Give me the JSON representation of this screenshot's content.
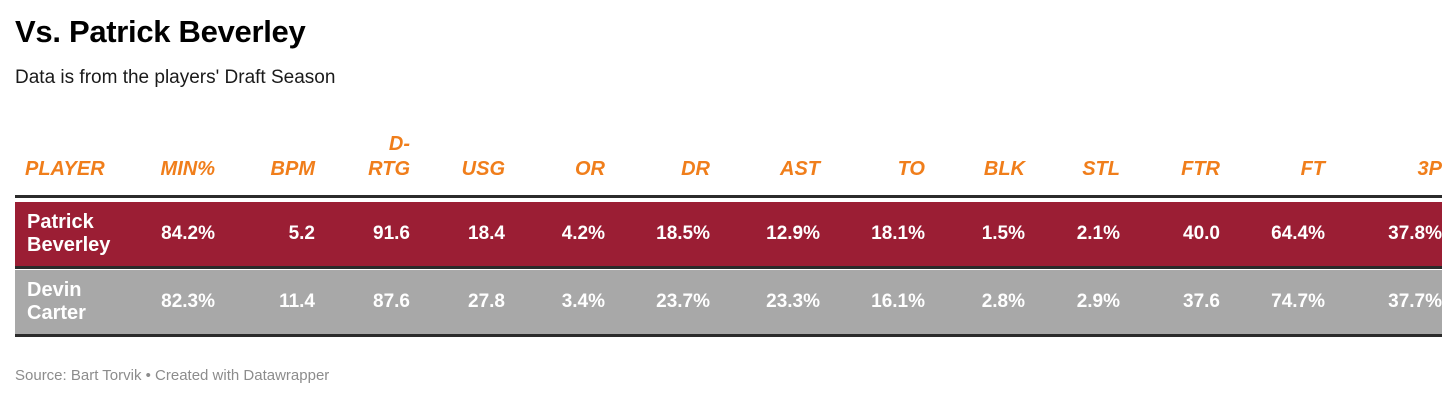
{
  "header": {
    "title": "Vs. Patrick Beverley",
    "subtitle": "Data is from the players' Draft Season"
  },
  "footer": {
    "source": "Source: Bart Torvik • Created with Datawrapper"
  },
  "colors": {
    "header_text": "#f07e1b",
    "row_patrick": "#9b1e34",
    "row_devin": "#a8a8a8",
    "rule": "#2b2b2b"
  },
  "chart_data": {
    "type": "table",
    "columns": [
      "PLAYER",
      "MIN%",
      "BPM",
      "D-RTG",
      "USG",
      "OR",
      "DR",
      "AST",
      "TO",
      "BLK",
      "STL",
      "FTR",
      "FT",
      "3P"
    ],
    "column_header_lines": [
      [
        "PLAYER"
      ],
      [
        "MIN%"
      ],
      [
        "BPM"
      ],
      [
        "D-",
        "RTG"
      ],
      [
        "USG"
      ],
      [
        "OR"
      ],
      [
        "DR"
      ],
      [
        "AST"
      ],
      [
        "TO"
      ],
      [
        "BLK"
      ],
      [
        "STL"
      ],
      [
        "FTR"
      ],
      [
        "FT"
      ],
      [
        "3P"
      ]
    ],
    "rows": [
      {
        "player": "Patrick Beverley",
        "player_lines": [
          "Patrick",
          "Beverley"
        ],
        "row_color": "#9b1e34",
        "values": [
          "84.2%",
          "5.2",
          "91.6",
          "18.4",
          "4.2%",
          "18.5%",
          "12.9%",
          "18.1%",
          "1.5%",
          "2.1%",
          "40.0",
          "64.4%",
          "37.8%"
        ]
      },
      {
        "player": "Devin Carter",
        "player_lines": [
          "Devin",
          "Carter"
        ],
        "row_color": "#a8a8a8",
        "values": [
          "82.3%",
          "11.4",
          "87.6",
          "27.8",
          "3.4%",
          "23.7%",
          "23.3%",
          "16.1%",
          "2.8%",
          "2.9%",
          "37.6",
          "74.7%",
          "37.7%"
        ]
      }
    ]
  }
}
